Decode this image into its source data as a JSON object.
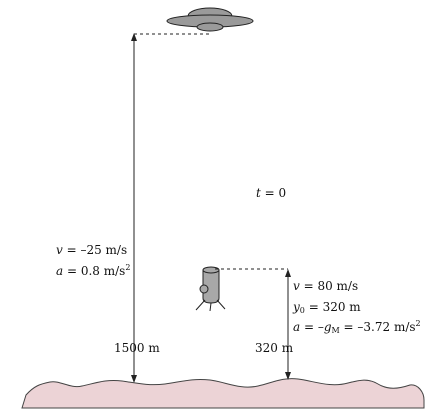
{
  "scene": {
    "time_label": {
      "var": "t",
      "eq": " = ",
      "value": "0"
    },
    "ufo": {
      "velocity": {
        "var": "v",
        "eq": " = ",
        "value": "–25 m/s"
      },
      "acceleration": {
        "var": "a",
        "eq": " = ",
        "value": "0.8 m/s",
        "exp": "2"
      },
      "height_label": "1500 m"
    },
    "lander": {
      "velocity": {
        "var": "v",
        "eq": " = ",
        "value": "80 m/s"
      },
      "initial_height": {
        "var": "y",
        "sub": "0",
        "eq": " = ",
        "value": "320 m"
      },
      "acceleration": {
        "var": "a",
        "eq": " = ",
        "g": "g",
        "g_sub": "M",
        "value": " = –3.72 m/s",
        "exp": "2",
        "minus": "–"
      },
      "height_label": "320 m"
    }
  },
  "colors": {
    "ground_fill": "#ecd3d6",
    "ground_stroke": "#444444",
    "ufo_fill": "#9a9a9a",
    "lander_fill": "#a8a8a8",
    "line": "#222222"
  }
}
